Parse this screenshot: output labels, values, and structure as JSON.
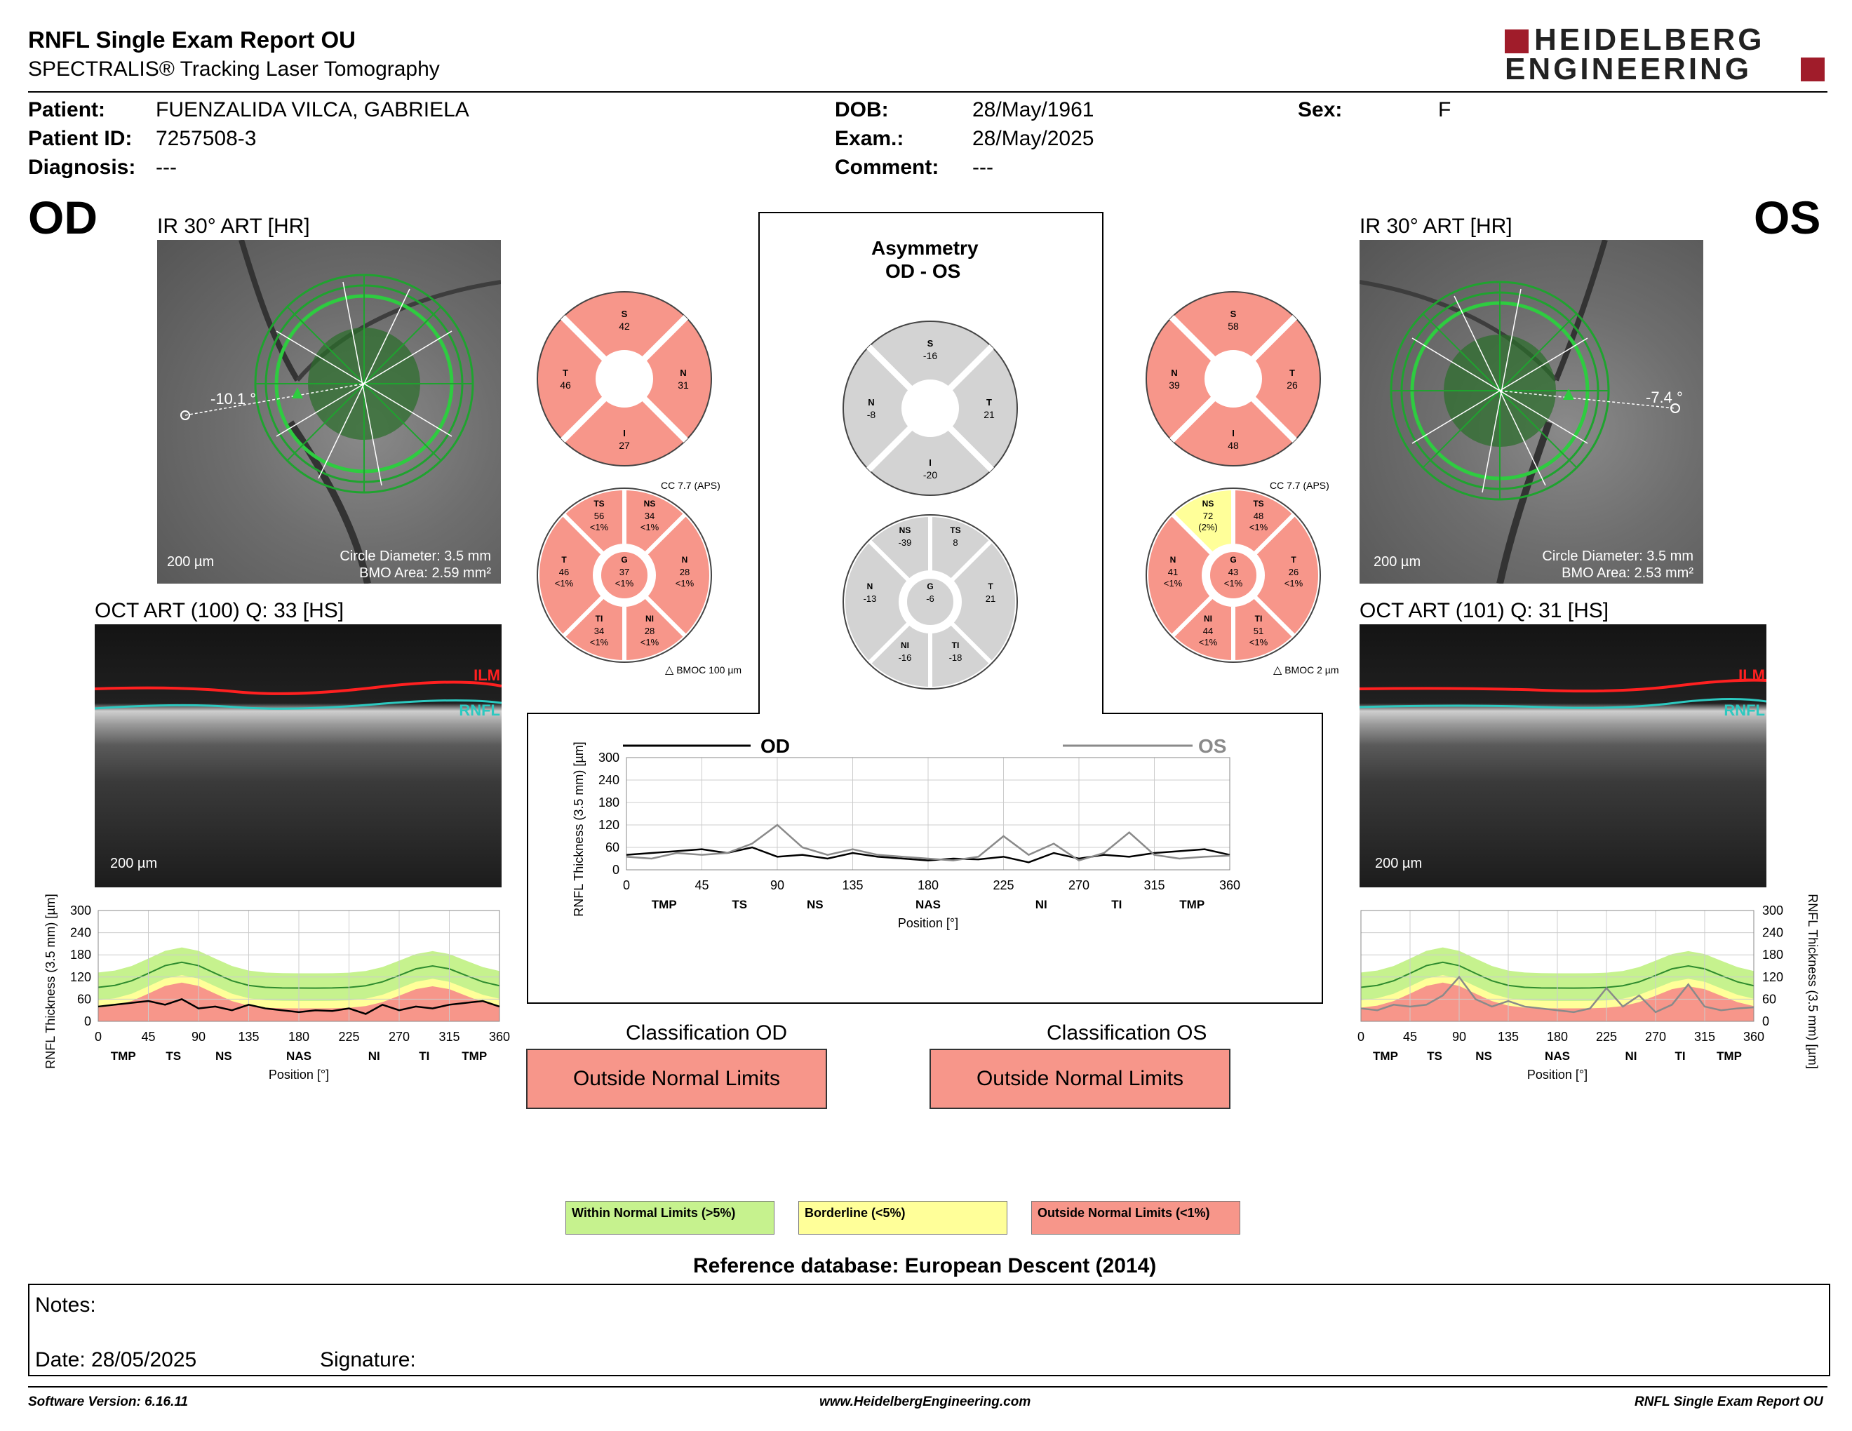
{
  "header": {
    "title": "RNFL Single Exam Report OU",
    "subtitle": "SPECTRALIS® Tracking Laser Tomography",
    "logo_line1": "HEIDELBERG",
    "logo_line2": "ENGINEERING"
  },
  "patient": {
    "patient_label": "Patient:",
    "patient_value": "FUENZALIDA VILCA, GABRIELA",
    "id_label": "Patient ID:",
    "id_value": "7257508-3",
    "diagnosis_label": "Diagnosis:",
    "diagnosis_value": "---",
    "dob_label": "DOB:",
    "dob_value": "28/May/1961",
    "exam_label": "Exam.:",
    "exam_value": "28/May/2025",
    "comment_label": "Comment:",
    "comment_value": "---",
    "sex_label": "Sex:",
    "sex_value": "F"
  },
  "od": {
    "eye": "OD",
    "ir_label": "IR 30° ART [HR]",
    "angle": "-10.1 °",
    "scale": "200 µm",
    "circle_diameter": "Circle Diameter: 3.5 mm",
    "bmo_area": "BMO Area: 2.59 mm²",
    "oct_label": "OCT ART (100) Q: 33 [HS]",
    "oct_scale": "200 µm",
    "sectors4": {
      "S": "42",
      "T": "46",
      "N": "31",
      "I": "27"
    },
    "cc": "CC 7.7 (APS)",
    "bmoc": "BMOC 100 µm",
    "sectors6": {
      "TS": [
        "56",
        "<1%"
      ],
      "NS": [
        "34",
        "<1%"
      ],
      "T": [
        "46",
        "<1%"
      ],
      "G": [
        "37",
        "<1%"
      ],
      "N": [
        "28",
        "<1%"
      ],
      "TI": [
        "34",
        "<1%"
      ],
      "NI": [
        "28",
        "<1%"
      ]
    },
    "classification_label": "Classification OD",
    "classification": "Outside Normal Limits"
  },
  "os": {
    "eye": "OS",
    "ir_label": "IR 30° ART [HR]",
    "angle": "-7.4 °",
    "scale": "200 µm",
    "circle_diameter": "Circle Diameter: 3.5 mm",
    "bmo_area": "BMO Area: 2.53 mm²",
    "oct_label": "OCT ART (101) Q: 31 [HS]",
    "oct_scale": "200 µm",
    "sectors4": {
      "S": "58",
      "N": "39",
      "T": "26",
      "I": "48"
    },
    "cc": "CC 7.7 (APS)",
    "bmoc": "BMOC 2 µm",
    "sectors6": {
      "NS": [
        "72",
        "(2%)"
      ],
      "TS": [
        "48",
        "<1%"
      ],
      "N": [
        "41",
        "<1%"
      ],
      "G": [
        "43",
        "<1%"
      ],
      "T": [
        "26",
        "<1%"
      ],
      "NI": [
        "44",
        "<1%"
      ],
      "TI": [
        "51",
        "<1%"
      ]
    },
    "classification_label": "Classification OS",
    "classification": "Outside Normal Limits"
  },
  "asymmetry": {
    "title_line1": "Asymmetry",
    "title_line2": "OD - OS",
    "sectors4": {
      "S": "-16",
      "N": "-8",
      "T": "21",
      "I": "-20"
    },
    "sectors6": {
      "NS": "-39",
      "TS": "8",
      "N": "-13",
      "G": "-6",
      "T": "21",
      "NI": "-16",
      "TI": "-18"
    }
  },
  "oct_labels": {
    "ilm": "ILM",
    "rnfl": "RNFL"
  },
  "colors": {
    "outside": "#f7968a",
    "borderline": "#ffff99",
    "within": "#c6f28e",
    "od_line": "#000000",
    "os_line": "#8a8a8a",
    "accent": "#a01c2a"
  },
  "chart_data": [
    {
      "type": "line",
      "title": "",
      "xlabel": "Position [°]",
      "ylabel": "RNFL Thickness (3.5 mm) [µm]",
      "xlim": [
        0,
        360
      ],
      "ylim": [
        0,
        300
      ],
      "x_ticks": [
        "0",
        "45",
        "90",
        "135",
        "180",
        "225",
        "270",
        "315",
        "360"
      ],
      "y_ticks": [
        "0",
        "60",
        "120",
        "180",
        "240",
        "300"
      ],
      "sector_labels": [
        "TMP",
        "TS",
        "NS",
        "NAS",
        "NI",
        "TI",
        "TMP"
      ],
      "legend": [
        "OD",
        "OS"
      ],
      "series": [
        {
          "name": "OD",
          "x": [
            0,
            15,
            30,
            45,
            60,
            75,
            90,
            105,
            120,
            135,
            150,
            165,
            180,
            195,
            210,
            225,
            240,
            255,
            270,
            285,
            300,
            315,
            330,
            345,
            360
          ],
          "values": [
            40,
            45,
            50,
            55,
            45,
            60,
            35,
            40,
            30,
            45,
            35,
            30,
            25,
            30,
            28,
            35,
            20,
            45,
            30,
            40,
            35,
            45,
            50,
            55,
            40
          ]
        },
        {
          "name": "OS",
          "x": [
            0,
            15,
            30,
            45,
            60,
            75,
            90,
            105,
            120,
            135,
            150,
            165,
            180,
            195,
            210,
            225,
            240,
            255,
            270,
            285,
            300,
            315,
            330,
            345,
            360
          ],
          "values": [
            35,
            30,
            45,
            40,
            45,
            70,
            120,
            60,
            40,
            55,
            40,
            35,
            30,
            25,
            35,
            90,
            40,
            70,
            25,
            45,
            100,
            40,
            30,
            35,
            38
          ]
        }
      ]
    },
    {
      "type": "line",
      "title": "",
      "xlabel": "Position [°]",
      "ylabel": "RNFL Thickness (3.5 mm) [µm]",
      "xlim": [
        0,
        360
      ],
      "ylim": [
        0,
        300
      ],
      "x_ticks": [
        "0",
        "45",
        "90",
        "135",
        "180",
        "225",
        "270",
        "315",
        "360"
      ],
      "y_ticks": [
        "0",
        "60",
        "120",
        "180",
        "240",
        "300"
      ],
      "sector_labels": [
        "TMP",
        "TS",
        "NS",
        "NAS",
        "NI",
        "TI",
        "TMP"
      ],
      "series": [
        {
          "name": "OD",
          "x": [
            0,
            15,
            30,
            45,
            60,
            75,
            90,
            105,
            120,
            135,
            150,
            165,
            180,
            195,
            210,
            225,
            240,
            255,
            270,
            285,
            300,
            315,
            330,
            345,
            360
          ],
          "values": [
            40,
            45,
            50,
            55,
            45,
            60,
            35,
            40,
            30,
            45,
            35,
            30,
            25,
            30,
            28,
            35,
            20,
            45,
            30,
            40,
            35,
            45,
            50,
            55,
            40
          ]
        }
      ]
    },
    {
      "type": "line",
      "title": "",
      "xlabel": "Position [°]",
      "ylabel": "RNFL Thickness (3.5 mm) [µm]",
      "xlim": [
        0,
        360
      ],
      "ylim": [
        0,
        300
      ],
      "x_ticks": [
        "0",
        "45",
        "90",
        "135",
        "180",
        "225",
        "270",
        "315",
        "360"
      ],
      "y_ticks": [
        "0",
        "60",
        "120",
        "180",
        "240",
        "300"
      ],
      "sector_labels": [
        "TMP",
        "TS",
        "NS",
        "NAS",
        "NI",
        "TI",
        "TMP"
      ],
      "series": [
        {
          "name": "OS",
          "x": [
            0,
            15,
            30,
            45,
            60,
            75,
            90,
            105,
            120,
            135,
            150,
            165,
            180,
            195,
            210,
            225,
            240,
            255,
            270,
            285,
            300,
            315,
            330,
            345,
            360
          ],
          "values": [
            35,
            30,
            45,
            40,
            45,
            70,
            120,
            60,
            40,
            55,
            40,
            35,
            30,
            25,
            35,
            90,
            40,
            70,
            25,
            45,
            100,
            40,
            30,
            35,
            38
          ]
        }
      ]
    }
  ],
  "legend_boxes": {
    "within": "Within Normal Limits (>5%)",
    "borderline": "Borderline (<5%)",
    "outside": "Outside Normal Limits (<1%)"
  },
  "reference": "Reference database: European Descent (2014)",
  "notes": {
    "notes_label": "Notes:",
    "date_label": "Date: 28/05/2025",
    "signature_label": "Signature:"
  },
  "footer": {
    "version": "Software Version: 6.16.11",
    "website": "www.HeidelbergEngineering.com",
    "report": "RNFL Single Exam Report OU"
  }
}
